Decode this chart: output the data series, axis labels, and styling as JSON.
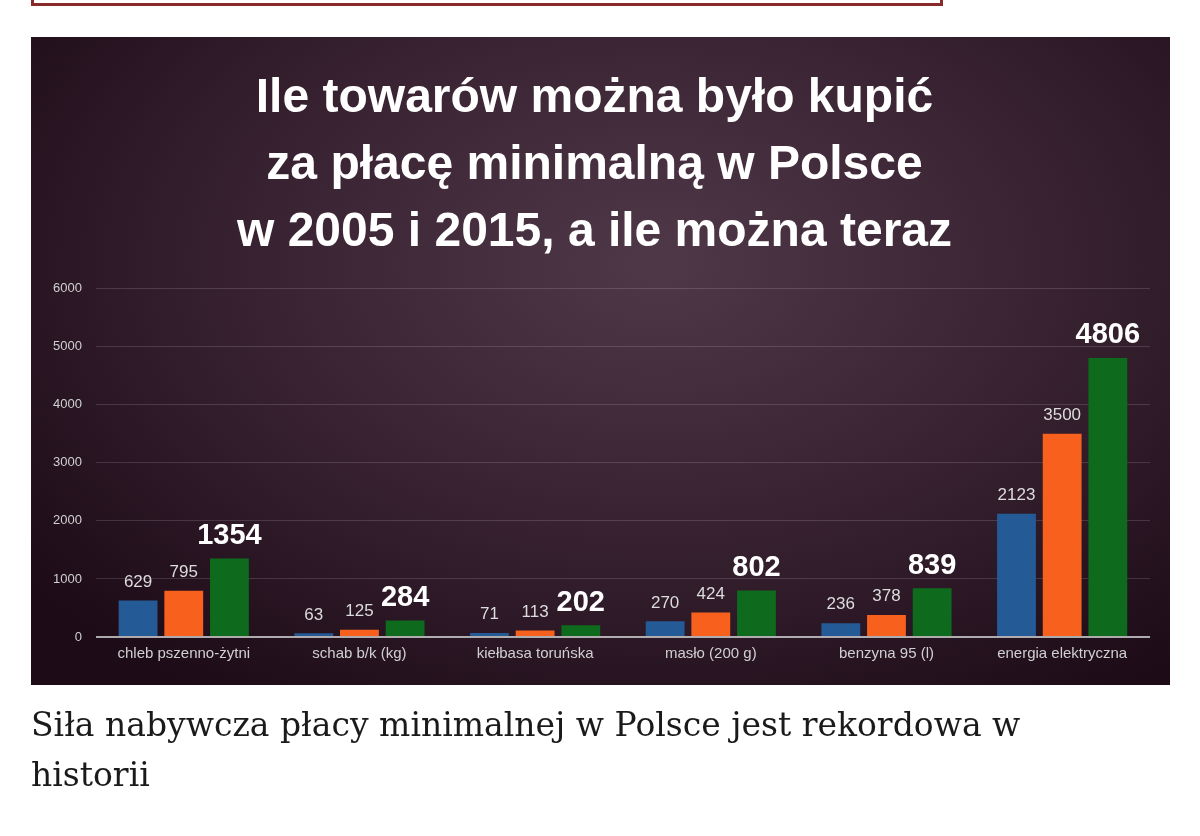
{
  "chart_data": {
    "type": "bar",
    "title": "Ile towarów można było kupić\nza płacę minimalną w Polsce\nw 2005 i 2015, a ile można teraz",
    "categories": [
      "chleb pszenno-żytni",
      "schab b/k (kg)",
      "kiełbasa toruńska",
      "masło (200 g)",
      "benzyna 95 (l)",
      "energia elektryczna"
    ],
    "series": [
      {
        "color": "#245a96",
        "values": [
          629,
          63,
          71,
          270,
          236,
          2123
        ]
      },
      {
        "color": "#f8601e",
        "values": [
          795,
          125,
          113,
          424,
          378,
          3500
        ]
      },
      {
        "color": "#0e6a1c",
        "values": [
          1354,
          284,
          202,
          802,
          839,
          4806
        ]
      }
    ],
    "ylim": [
      0,
      6000
    ],
    "yticks": [
      0,
      1000,
      2000,
      3000,
      4000,
      5000,
      6000
    ],
    "grid": "y",
    "data_labels": true,
    "annotations": [
      "Siła nabywcza płacy minimalnej w Polsce jest rekordowa w historii"
    ]
  }
}
